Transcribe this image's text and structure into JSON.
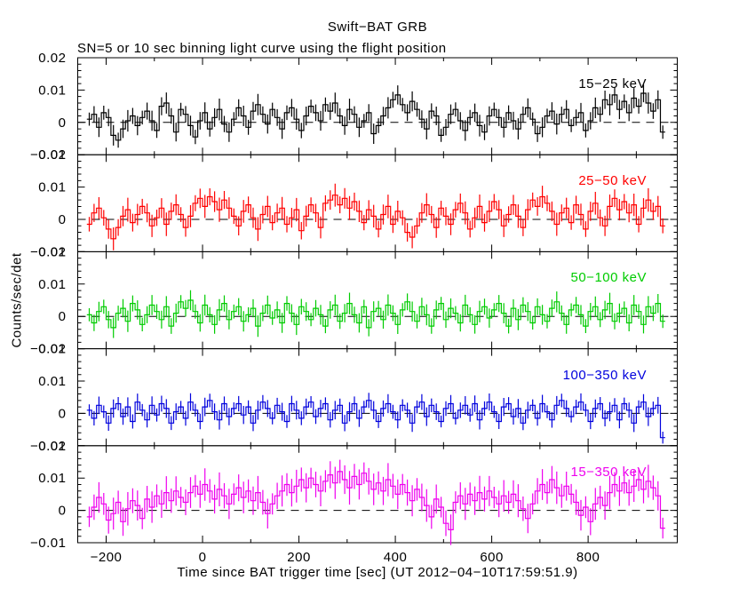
{
  "page": {
    "background": "#ffffff"
  },
  "chart_data": {
    "type": "line",
    "subtype": "step-histogram-with-errorbars",
    "title": "Swift−BAT GRB",
    "subtitle": "SN=5 or 10 sec binning light curve using the flight position",
    "xlabel": "Time since BAT trigger time [sec] (UT 2012−04−10T17:59:51.9)",
    "ylabel": "Counts/sec/det",
    "xlim": [
      -259,
      985
    ],
    "ylim_per_panel": [
      -0.01,
      0.02
    ],
    "x_major_ticks": [
      -200,
      0,
      200,
      400,
      600,
      800
    ],
    "x_minor_ticks": [
      -100,
      100,
      300,
      500,
      700,
      900
    ],
    "y_major_ticks": [
      -0.01,
      0,
      0.01,
      0.02
    ],
    "y_minor_step": 0.002,
    "grid": false,
    "legend_position": "inside-top-right-per-panel",
    "zero_line_style": "black-dashed",
    "bin_start": -240,
    "bin_width": 10,
    "value_scale": 0.0001,
    "panels": [
      {
        "label": "15−25 keV",
        "color": "#000000",
        "yerr": 27,
        "values": [
          10,
          25,
          -15,
          30,
          15,
          -40,
          -55,
          -20,
          5,
          20,
          -10,
          15,
          35,
          5,
          -25,
          50,
          60,
          20,
          -30,
          40,
          25,
          -10,
          -45,
          5,
          30,
          -20,
          15,
          40,
          -5,
          -30,
          10,
          45,
          20,
          -15,
          35,
          55,
          25,
          -5,
          40,
          15,
          -20,
          30,
          45,
          10,
          -25,
          20,
          50,
          30,
          5,
          55,
          35,
          60,
          20,
          -10,
          40,
          25,
          -15,
          5,
          30,
          -35,
          -10,
          20,
          45,
          70,
          85,
          55,
          30,
          65,
          40,
          10,
          -20,
          35,
          20,
          -40,
          -15,
          25,
          40,
          5,
          -25,
          15,
          30,
          -10,
          -30,
          20,
          40,
          15,
          -15,
          30,
          5,
          -20,
          25,
          45,
          10,
          -35,
          -15,
          20,
          35,
          -5,
          25,
          40,
          -10,
          15,
          30,
          -25,
          5,
          45,
          25,
          70,
          55,
          85,
          40,
          65,
          30,
          75,
          50,
          90,
          60,
          35,
          70,
          -30
        ]
      },
      {
        "label": "25−50 keV",
        "color": "#ff0000",
        "yerr": 30,
        "values": [
          -15,
          20,
          35,
          5,
          -30,
          -60,
          -25,
          10,
          30,
          -10,
          15,
          40,
          20,
          -20,
          5,
          35,
          -15,
          25,
          45,
          15,
          -25,
          10,
          50,
          65,
          40,
          70,
          55,
          30,
          60,
          35,
          10,
          -20,
          25,
          45,
          5,
          -30,
          15,
          40,
          -10,
          20,
          35,
          -15,
          5,
          30,
          -35,
          10,
          45,
          20,
          -25,
          50,
          60,
          75,
          45,
          65,
          35,
          55,
          25,
          -10,
          30,
          10,
          -30,
          15,
          40,
          -15,
          25,
          5,
          -40,
          -55,
          -20,
          20,
          45,
          15,
          -25,
          35,
          10,
          -15,
          30,
          50,
          20,
          -30,
          5,
          40,
          -10,
          25,
          55,
          30,
          -20,
          15,
          45,
          10,
          -25,
          30,
          60,
          40,
          70,
          50,
          25,
          -15,
          20,
          35,
          -10,
          45,
          15,
          -30,
          25,
          50,
          5,
          -20,
          40,
          65,
          30,
          55,
          20,
          45,
          -15,
          35,
          60,
          25,
          40,
          -20
        ]
      },
      {
        "label": "50−100 keV",
        "color": "#00cc00",
        "yerr": 27,
        "values": [
          5,
          -20,
          15,
          30,
          -10,
          -35,
          10,
          25,
          -15,
          40,
          20,
          -25,
          5,
          35,
          15,
          -10,
          30,
          -30,
          10,
          45,
          25,
          50,
          15,
          -20,
          35,
          5,
          -25,
          20,
          40,
          -10,
          15,
          30,
          -15,
          5,
          25,
          -30,
          10,
          35,
          -5,
          20,
          -20,
          40,
          10,
          -25,
          30,
          15,
          -10,
          25,
          5,
          -30,
          20,
          35,
          -15,
          10,
          40,
          5,
          -20,
          30,
          -35,
          15,
          25,
          -10,
          35,
          10,
          -25,
          20,
          45,
          15,
          -15,
          30,
          5,
          -30,
          20,
          40,
          -10,
          25,
          10,
          -20,
          35,
          5,
          -25,
          15,
          30,
          -5,
          20,
          40,
          10,
          -30,
          25,
          -10,
          35,
          15,
          -20,
          30,
          5,
          -15,
          25,
          45,
          10,
          -25,
          20,
          35,
          5,
          -30,
          15,
          30,
          -10,
          20,
          40,
          -15,
          10,
          25,
          -20,
          35,
          15,
          -25,
          30,
          10,
          40,
          -15
        ]
      },
      {
        "label": "100−350 keV",
        "color": "#0000dd",
        "yerr": 24,
        "values": [
          10,
          -15,
          25,
          5,
          -30,
          15,
          30,
          -10,
          20,
          -25,
          35,
          10,
          -20,
          25,
          -5,
          30,
          15,
          -30,
          5,
          20,
          -15,
          35,
          10,
          -25,
          20,
          40,
          5,
          -20,
          30,
          -10,
          15,
          30,
          -5,
          20,
          -30,
          10,
          35,
          15,
          -15,
          25,
          5,
          -25,
          30,
          10,
          -15,
          20,
          35,
          -10,
          15,
          30,
          -20,
          10,
          25,
          -30,
          5,
          30,
          -15,
          20,
          40,
          10,
          -25,
          15,
          30,
          5,
          -20,
          25,
          10,
          -30,
          20,
          35,
          -10,
          25,
          5,
          -25,
          15,
          30,
          -15,
          10,
          25,
          -5,
          30,
          -20,
          15,
          35,
          5,
          -25,
          20,
          30,
          -10,
          15,
          -30,
          10,
          25,
          -15,
          30,
          5,
          -20,
          25,
          40,
          15,
          -10,
          20,
          35,
          10,
          -25,
          15,
          30,
          -15,
          5,
          25,
          -20,
          30,
          10,
          -30,
          20,
          35,
          -10,
          15,
          25,
          -75
        ]
      },
      {
        "label": "15−350 keV",
        "color": "#ee00ee",
        "yerr": 42,
        "values": [
          -20,
          10,
          40,
          20,
          -30,
          -10,
          25,
          -35,
          5,
          30,
          15,
          -25,
          35,
          10,
          45,
          20,
          55,
          30,
          60,
          40,
          25,
          55,
          75,
          50,
          80,
          60,
          35,
          65,
          45,
          20,
          50,
          70,
          40,
          60,
          30,
          55,
          25,
          -10,
          20,
          45,
          60,
          80,
          55,
          75,
          95,
          70,
          100,
          80,
          60,
          90,
          110,
          85,
          120,
          95,
          70,
          105,
          80,
          115,
          90,
          65,
          85,
          60,
          95,
          75,
          50,
          80,
          55,
          30,
          65,
          40,
          15,
          -20,
          35,
          10,
          -40,
          -60,
          25,
          45,
          20,
          50,
          30,
          55,
          35,
          60,
          40,
          20,
          45,
          25,
          50,
          30,
          5,
          -25,
          20,
          60,
          80,
          55,
          95,
          70,
          45,
          75,
          50,
          25,
          -15,
          10,
          -35,
          20,
          40,
          15,
          55,
          80,
          60,
          85,
          55,
          75,
          95,
          65,
          90,
          70,
          45,
          -55
        ]
      }
    ]
  }
}
